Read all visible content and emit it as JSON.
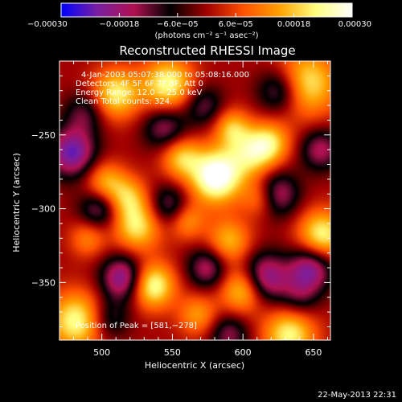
{
  "chart_data": {
    "type": "heatmap",
    "title": "Reconstructed RHESSI Image",
    "xlabel": "Heliocentric X (arcsec)",
    "ylabel": "Heliocentric Y (arcsec)",
    "xlim": [
      470,
      662
    ],
    "ylim": [
      -389,
      -200
    ],
    "xticks": [
      500,
      550,
      600,
      650
    ],
    "yticks": [
      -250,
      -300,
      -350
    ],
    "xtick_labels": [
      "500",
      "550",
      "600",
      "650"
    ],
    "ytick_labels": [
      "−250",
      "−300",
      "−350"
    ],
    "colorbar": {
      "range": [
        -0.0003,
        0.0003
      ],
      "ticks": [
        -0.0003,
        -0.00018,
        -6e-05,
        6e-05,
        0.00018,
        0.0003
      ],
      "tick_labels": [
        "−0.00030",
        "−0.00018",
        "−6.0e−05",
        "6.0e−05",
        "0.00018",
        "0.00030"
      ],
      "label": "(photons cm⁻² s⁻¹ asec⁻²)",
      "colors": [
        "#0000ff",
        "#7a1fa0",
        "#b01050",
        "#000000",
        "#a00000",
        "#ff5000",
        "#ffa000",
        "#ffff80",
        "#ffffff"
      ]
    },
    "peak": [
      581,
      -278
    ],
    "sources": [
      {
        "x": 581,
        "y": -278,
        "v": 0.00033,
        "r": 13
      },
      {
        "x": 536,
        "y": -352,
        "v": 0.00026,
        "r": 11
      },
      {
        "x": 482,
        "y": -376,
        "v": 0.00024,
        "r": 14
      },
      {
        "x": 510,
        "y": -222,
        "v": 0.00022,
        "r": 12
      },
      {
        "x": 547,
        "y": -216,
        "v": 0.00024,
        "r": 13
      },
      {
        "x": 645,
        "y": -215,
        "v": 0.00022,
        "r": 16
      },
      {
        "x": 656,
        "y": -318,
        "v": 0.00024,
        "r": 12
      },
      {
        "x": 633,
        "y": -385,
        "v": 0.00023,
        "r": 13
      },
      {
        "x": 600,
        "y": -355,
        "v": 0.00022,
        "r": 11
      },
      {
        "x": 525,
        "y": -312,
        "v": 0.00021,
        "r": 12
      },
      {
        "x": 518,
        "y": -292,
        "v": 0.00016,
        "r": 10
      },
      {
        "x": 502,
        "y": -282,
        "v": 0.00016,
        "r": 10
      },
      {
        "x": 556,
        "y": -265,
        "v": 0.00018,
        "r": 10
      },
      {
        "x": 560,
        "y": -308,
        "v": 0.00014,
        "r": 9
      },
      {
        "x": 590,
        "y": -322,
        "v": 0.00017,
        "r": 11
      },
      {
        "x": 607,
        "y": -262,
        "v": 0.0002,
        "r": 12
      },
      {
        "x": 592,
        "y": -245,
        "v": 0.00016,
        "r": 9
      },
      {
        "x": 620,
        "y": -255,
        "v": 0.00015,
        "r": 10
      },
      {
        "x": 568,
        "y": -372,
        "v": 0.00014,
        "r": 10
      },
      {
        "x": 612,
        "y": -293,
        "v": 0.00013,
        "r": 9
      },
      {
        "x": 490,
        "y": -320,
        "v": 0.00012,
        "r": 9
      },
      {
        "x": 479,
        "y": -262,
        "v": -0.00024,
        "r": 12
      },
      {
        "x": 515,
        "y": -347,
        "v": -0.00023,
        "r": 11
      },
      {
        "x": 615,
        "y": -347,
        "v": -0.00023,
        "r": 12
      },
      {
        "x": 624,
        "y": -290,
        "v": -0.00018,
        "r": 11
      },
      {
        "x": 648,
        "y": -340,
        "v": -0.00022,
        "r": 11
      },
      {
        "x": 575,
        "y": -340,
        "v": -0.00017,
        "r": 10
      },
      {
        "x": 626,
        "y": -220,
        "v": -0.00018,
        "r": 11
      },
      {
        "x": 548,
        "y": -298,
        "v": -0.00015,
        "r": 10
      },
      {
        "x": 498,
        "y": -300,
        "v": -0.00016,
        "r": 10
      },
      {
        "x": 545,
        "y": -245,
        "v": -0.00016,
        "r": 11
      },
      {
        "x": 572,
        "y": -230,
        "v": -0.00013,
        "r": 10
      },
      {
        "x": 655,
        "y": -260,
        "v": -0.00016,
        "r": 10
      },
      {
        "x": 590,
        "y": -385,
        "v": -0.00014,
        "r": 10
      },
      {
        "x": 505,
        "y": -375,
        "v": -0.00012,
        "r": 10
      },
      {
        "x": 640,
        "y": -360,
        "v": -0.00011,
        "r": 10
      },
      {
        "x": 488,
        "y": -235,
        "v": -0.00012,
        "r": 10
      }
    ]
  },
  "annotations": {
    "time": "4-Jan-2003 05:07:38.000 to 05:08:16.000",
    "detectors": "Detectors: 4F 5F 6F 7F 8F, Att 0",
    "energy": "Energy Range: 12.0 − 25.0 keV",
    "clean": "Clean     Total counts: 324.",
    "peak": "Position of Peak = [581,−278]"
  },
  "timestamp": "22-May-2013 22:31"
}
